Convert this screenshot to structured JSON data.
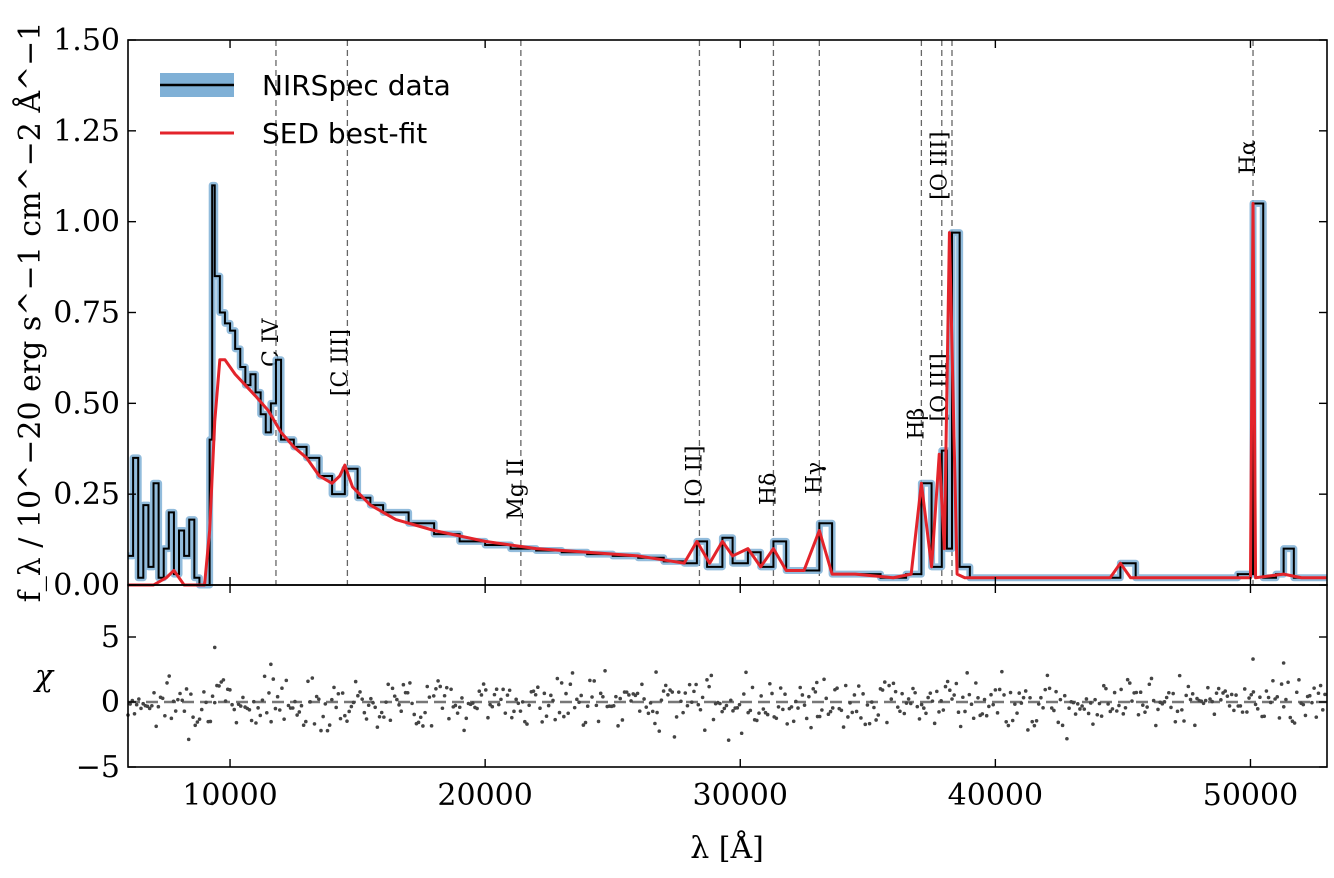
{
  "chart_data": [
    {
      "type": "line",
      "panel": "spectrum",
      "xlabel": "λ [Å]",
      "ylabel": "f_λ / 10^−20 erg s^−1 cm^−2 Å^−1",
      "xlim": [
        6000,
        53000
      ],
      "ylim": [
        0,
        1.5
      ],
      "x_ticks": [
        10000,
        20000,
        30000,
        40000,
        50000
      ],
      "x_tick_labels": [
        "10000",
        "20000",
        "30000",
        "40000",
        "50000"
      ],
      "y_ticks": [
        0,
        0.25,
        0.5,
        0.75,
        1.0,
        1.25,
        1.5
      ],
      "y_tick_labels": [
        "0.00",
        "0.25",
        "0.50",
        "0.75",
        "1.00",
        "1.25",
        "1.50"
      ],
      "legend": {
        "position": "top-left",
        "entries": [
          "NIRSpec data",
          "SED best-fit"
        ]
      },
      "series": [
        {
          "name": "NIRSpec data",
          "color": "#000000",
          "error_color": "#7fb0d6",
          "x": [
            6000,
            6200,
            6400,
            6600,
            6800,
            7000,
            7200,
            7400,
            7600,
            7800,
            8000,
            8200,
            8400,
            8600,
            8800,
            9000,
            9200,
            9300,
            9400,
            9600,
            9800,
            10000,
            10200,
            10400,
            10600,
            10800,
            11000,
            11200,
            11400,
            11600,
            11800,
            12000,
            12500,
            13000,
            13500,
            14000,
            14500,
            15000,
            15500,
            16000,
            17000,
            18000,
            19000,
            20000,
            21000,
            22000,
            23000,
            24000,
            25000,
            26000,
            27000,
            27800,
            28300,
            28700,
            29300,
            29700,
            30300,
            30800,
            31300,
            31800,
            32500,
            33100,
            33600,
            34500,
            35500,
            36500,
            37100,
            37500,
            37900,
            38100,
            38300,
            38600,
            39000,
            40000,
            41000,
            42000,
            43000,
            44000,
            44900,
            45500,
            46500,
            47500,
            48500,
            49500,
            50100,
            50500,
            51000,
            51300,
            51700,
            52200,
            53000
          ],
          "y": [
            0.08,
            0.35,
            0.02,
            0.22,
            0.05,
            0.28,
            0.02,
            0.1,
            0.2,
            0.03,
            0.15,
            0.08,
            0.18,
            0.02,
            0.0,
            0.0,
            0.4,
            1.1,
            0.85,
            0.75,
            0.72,
            0.7,
            0.65,
            0.6,
            0.55,
            0.58,
            0.53,
            0.47,
            0.42,
            0.5,
            0.62,
            0.4,
            0.38,
            0.35,
            0.3,
            0.25,
            0.32,
            0.24,
            0.22,
            0.2,
            0.17,
            0.14,
            0.12,
            0.11,
            0.1,
            0.095,
            0.09,
            0.085,
            0.08,
            0.075,
            0.065,
            0.06,
            0.12,
            0.05,
            0.13,
            0.06,
            0.09,
            0.05,
            0.12,
            0.04,
            0.04,
            0.17,
            0.03,
            0.03,
            0.02,
            0.03,
            0.28,
            0.05,
            0.37,
            0.1,
            0.97,
            0.05,
            0.02,
            0.02,
            0.02,
            0.02,
            0.02,
            0.02,
            0.06,
            0.02,
            0.02,
            0.02,
            0.02,
            0.03,
            1.05,
            0.02,
            0.03,
            0.1,
            0.02,
            0.02,
            0.02
          ]
        },
        {
          "name": "SED best-fit",
          "color": "#e3242b",
          "x": [
            6000,
            7000,
            7500,
            7800,
            8200,
            8800,
            9000,
            9200,
            9400,
            9600,
            9800,
            10200,
            10600,
            11000,
            11500,
            12000,
            12500,
            13000,
            13500,
            14000,
            14300,
            14500,
            14800,
            15500,
            16500,
            18000,
            20000,
            22000,
            24000,
            26000,
            27800,
            28300,
            28800,
            29300,
            29700,
            30300,
            30800,
            31300,
            31800,
            32500,
            33100,
            33600,
            34500,
            36000,
            36700,
            37100,
            37500,
            37800,
            38000,
            38200,
            38500,
            38800,
            40000,
            44500,
            44900,
            45300,
            50000,
            50100,
            50200,
            51300,
            52000,
            53000
          ],
          "y": [
            0.0,
            0.0,
            0.02,
            0.04,
            0.0,
            0.0,
            0.0,
            0.15,
            0.45,
            0.62,
            0.62,
            0.58,
            0.55,
            0.52,
            0.48,
            0.42,
            0.38,
            0.35,
            0.3,
            0.28,
            0.3,
            0.33,
            0.27,
            0.22,
            0.18,
            0.15,
            0.12,
            0.1,
            0.09,
            0.08,
            0.06,
            0.12,
            0.06,
            0.12,
            0.08,
            0.1,
            0.05,
            0.1,
            0.04,
            0.04,
            0.15,
            0.03,
            0.03,
            0.02,
            0.03,
            0.28,
            0.05,
            0.36,
            0.1,
            0.97,
            0.03,
            0.02,
            0.02,
            0.02,
            0.06,
            0.02,
            0.02,
            1.05,
            0.02,
            0.03,
            0.02,
            0.02
          ]
        }
      ],
      "annotations": [
        {
          "label": "C IV",
          "x": 11800
        },
        {
          "label": "[C III]",
          "x": 14600
        },
        {
          "label": "Mg II",
          "x": 21400
        },
        {
          "label": "[O II]",
          "x": 28400
        },
        {
          "label": "Hδ",
          "x": 31300
        },
        {
          "label": "Hγ",
          "x": 33100
        },
        {
          "label": "Hβ",
          "x": 37100
        },
        {
          "label": "[O III]",
          "x": 37900
        },
        {
          "label": "[O III]",
          "x": 38300
        },
        {
          "label": "Hα",
          "x": 50100
        }
      ]
    },
    {
      "type": "scatter",
      "panel": "residuals",
      "ylabel": "χ",
      "xlim": [
        6000,
        53000
      ],
      "ylim": [
        -5,
        9
      ],
      "y_ticks": [
        -5,
        0,
        5
      ],
      "y_tick_labels": [
        "−5",
        "0",
        "5"
      ],
      "reference_line": 0,
      "marker_color": "#444444"
    }
  ]
}
